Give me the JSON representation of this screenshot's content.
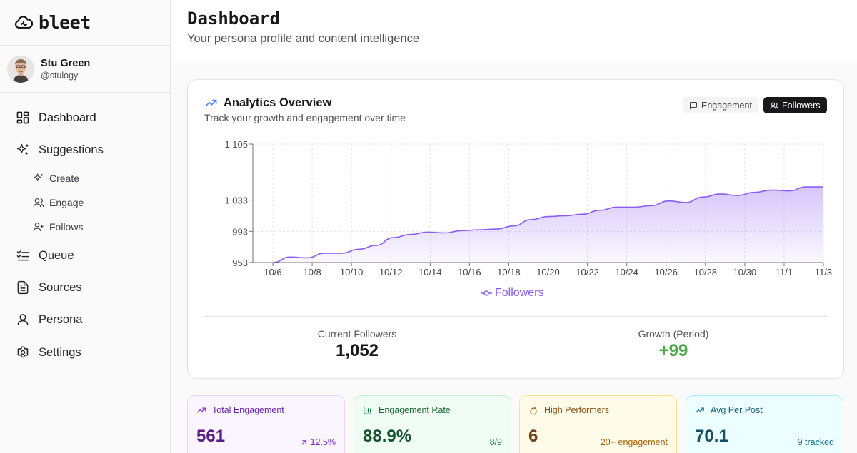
{
  "app": {
    "name": "bleet"
  },
  "user": {
    "name": "Stu Green",
    "handle": "@stulogy"
  },
  "nav": {
    "dashboard": "Dashboard",
    "suggestions": "Suggestions",
    "create": "Create",
    "engage": "Engage",
    "follows": "Follows",
    "queue": "Queue",
    "sources": "Sources",
    "persona": "Persona",
    "settings": "Settings"
  },
  "header": {
    "title": "Dashboard",
    "subtitle": "Your persona profile and content intelligence"
  },
  "analytics": {
    "title": "Analytics Overview",
    "subtitle": "Track your growth and engagement over time",
    "toggle_engagement": "Engagement",
    "toggle_followers": "Followers",
    "stats": {
      "current_label": "Current Followers",
      "current_value": "1,052",
      "growth_label": "Growth (Period)",
      "growth_value": "+99"
    }
  },
  "chart_data": {
    "type": "area",
    "title": "",
    "series": [
      {
        "name": "Followers",
        "values": [
          953,
          960,
          959,
          965,
          965,
          970,
          975,
          985,
          989,
          992,
          991,
          994,
          995,
          996,
          1000,
          1008,
          1012,
          1013,
          1015,
          1020,
          1024,
          1024,
          1026,
          1032,
          1030,
          1037,
          1041,
          1039,
          1043,
          1046,
          1045,
          1050,
          1050
        ]
      }
    ],
    "x_labels": [
      "10/6",
      "10/8",
      "10/10",
      "10/12",
      "10/14",
      "10/16",
      "10/18",
      "10/20",
      "10/22",
      "10/24",
      "10/26",
      "10/28",
      "10/30",
      "11/1",
      "11/3"
    ],
    "y_ticks": [
      953,
      993,
      1033,
      1105
    ],
    "y_tick_labels": [
      "953",
      "993",
      "1,033",
      "1,105"
    ],
    "ylim": [
      953,
      1105
    ],
    "legend": "Followers",
    "grid": true,
    "color": "#8b5cf6"
  },
  "metrics": [
    {
      "title": "Total Engagement",
      "value": "561",
      "foot": "12.5%"
    },
    {
      "title": "Engagement Rate",
      "value": "88.9%",
      "foot": "8/9"
    },
    {
      "title": "High Performers",
      "value": "6",
      "foot": "20+ engagement"
    },
    {
      "title": "Avg Per Post",
      "value": "70.1",
      "foot": "9 tracked"
    }
  ]
}
